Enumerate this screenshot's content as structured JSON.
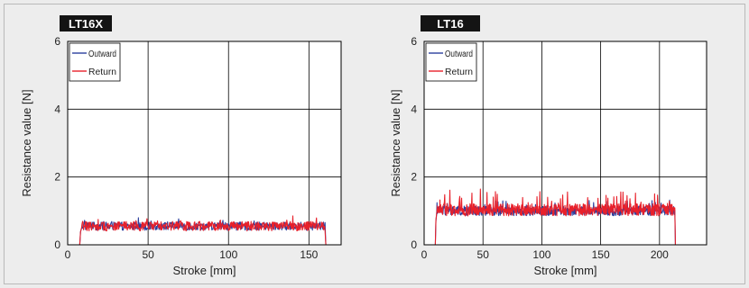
{
  "chart_data": [
    {
      "type": "line",
      "title": "LT16X",
      "xlabel": "Stroke [mm]",
      "ylabel": "Resistance value [N]",
      "xlim": [
        0,
        170
      ],
      "ylim": [
        0,
        6
      ],
      "xticks": [
        0,
        50,
        100,
        150
      ],
      "yticks": [
        0,
        2,
        4,
        6
      ],
      "grid": true,
      "legend": "top-left",
      "stroke_range": [
        8,
        160
      ],
      "series": [
        {
          "name": "Outward",
          "color": "#2b3f9e",
          "mean": 0.55,
          "noise": 0.12,
          "spikes": 0.15
        },
        {
          "name": "Return",
          "color": "#e8202a",
          "mean": 0.55,
          "noise": 0.14,
          "spikes": 0.2
        }
      ]
    },
    {
      "type": "line",
      "title": "LT16",
      "xlabel": "Stroke [mm]",
      "ylabel": "Resistance value [N]",
      "xlim": [
        0,
        240
      ],
      "ylim": [
        0,
        6
      ],
      "xticks": [
        0,
        50,
        100,
        150,
        200
      ],
      "yticks": [
        0,
        2,
        4,
        6
      ],
      "grid": true,
      "legend": "top-left",
      "stroke_range": [
        10,
        213
      ],
      "series": [
        {
          "name": "Outward",
          "color": "#2b3f9e",
          "mean": 1.0,
          "noise": 0.14,
          "spikes": 0.3
        },
        {
          "name": "Return",
          "color": "#e8202a",
          "mean": 1.03,
          "noise": 0.18,
          "spikes": 0.55
        }
      ]
    }
  ]
}
